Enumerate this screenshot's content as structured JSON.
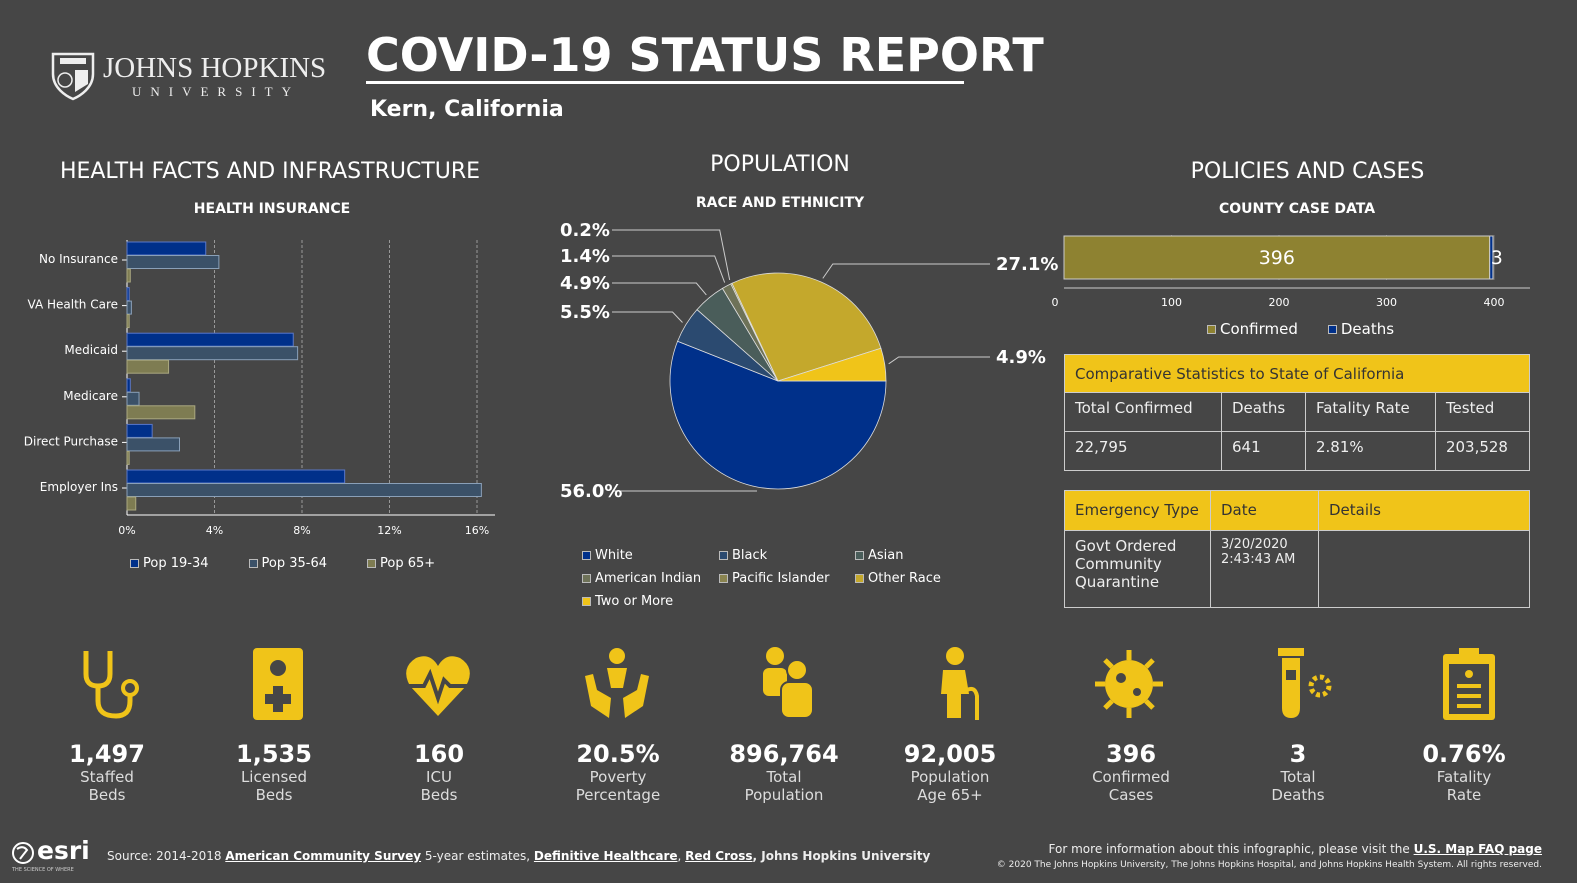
{
  "header": {
    "logo_name": "JOHNS HOPKINS",
    "logo_sub": "UNIVERSITY",
    "title": "COVID-19 STATUS REPORT",
    "location": "Kern,  California"
  },
  "sections": {
    "health": "HEALTH FACTS AND INFRASTRUCTURE",
    "population": "POPULATION",
    "policies": "POLICIES AND CASES"
  },
  "colors": {
    "accent": "#f0c419",
    "background": "#464646",
    "pop19": "#00308a",
    "pop35": "#3b5168",
    "pop65": "#7e7c52"
  },
  "chart_data": [
    {
      "type": "bar",
      "orientation": "horizontal",
      "title": "HEALTH INSURANCE",
      "categories": [
        "No Insurance",
        "VA Health Care",
        "Medicaid",
        "Medicare",
        "Direct Purchase",
        "Employer Ins"
      ],
      "series": [
        {
          "name": "Pop 19-34",
          "values": [
            3.6,
            0.1,
            7.6,
            0.15,
            1.15,
            9.95
          ]
        },
        {
          "name": "Pop 35-64",
          "values": [
            4.2,
            0.2,
            7.8,
            0.55,
            2.4,
            16.2
          ]
        },
        {
          "name": "Pop 65+",
          "values": [
            0.15,
            0.1,
            1.9,
            3.1,
            0.1,
            0.4
          ]
        }
      ],
      "xlim": [
        0,
        16
      ],
      "xticks": [
        "0%",
        "4%",
        "8%",
        "12%",
        "16%"
      ],
      "grid": true,
      "legend": "bottom"
    },
    {
      "type": "pie",
      "title": "RACE AND ETHNICITY",
      "categories": [
        "White",
        "Black",
        "Asian",
        "American Indian",
        "Pacific Islander",
        "Other Race",
        "Two or More"
      ],
      "values": [
        56.0,
        5.5,
        4.9,
        1.4,
        0.2,
        27.1,
        4.9
      ],
      "labels": [
        "56.0%",
        "5.5%",
        "4.9%",
        "1.4%",
        "0.2%",
        "27.1%",
        "4.9%"
      ],
      "colors": [
        "#00308a",
        "#2b4a70",
        "#4a5d5a",
        "#6e7258",
        "#8a8450",
        "#c4a82c",
        "#f0c419"
      ],
      "legend": "bottom"
    },
    {
      "type": "bar",
      "orientation": "horizontal",
      "stacked": true,
      "title": "COUNTY CASE DATA",
      "series": [
        {
          "name": "Confirmed",
          "values": [
            396
          ],
          "label": "396"
        },
        {
          "name": "Deaths",
          "values": [
            3
          ],
          "label": "3"
        }
      ],
      "xlim": [
        0,
        400
      ],
      "xticks": [
        "0",
        "100",
        "200",
        "300",
        "400"
      ],
      "colors": [
        "#8e8231",
        "#00308a"
      ],
      "legend": "bottom"
    }
  ],
  "comparative": {
    "title": "Comparative Statistics to State of California",
    "headers": [
      "Total Confirmed",
      "Deaths",
      "Fatality Rate",
      "Tested"
    ],
    "values": [
      "22,795",
      "641",
      "2.81%",
      "203,528"
    ]
  },
  "emergency": {
    "headers": [
      "Emergency Type",
      "Date",
      "Details"
    ],
    "rows": [
      [
        "Govt Ordered Community Quarantine",
        "3/20/2020 2:43:43 AM",
        ""
      ]
    ]
  },
  "stats": [
    {
      "icon": "stethoscope-icon",
      "value": "1,497",
      "l1": "Staffed",
      "l2": "Beds"
    },
    {
      "icon": "hospital-badge-icon",
      "value": "1,535",
      "l1": "Licensed",
      "l2": "Beds"
    },
    {
      "icon": "heartbeat-icon",
      "value": "160",
      "l1": "ICU",
      "l2": "Beds"
    },
    {
      "icon": "helping-hands-icon",
      "value": "20.5%",
      "l1": "Poverty",
      "l2": "Percentage"
    },
    {
      "icon": "people-icon",
      "value": "896,764",
      "l1": "Total",
      "l2": "Population"
    },
    {
      "icon": "elderly-icon",
      "value": "92,005",
      "l1": "Population",
      "l2": "Age 65+"
    },
    {
      "icon": "virus-icon",
      "value": "396",
      "l1": "Confirmed",
      "l2": "Cases"
    },
    {
      "icon": "test-tube-icon",
      "value": "3",
      "l1": "Total",
      "l2": "Deaths"
    },
    {
      "icon": "clipboard-icon",
      "value": "0.76%",
      "l1": "Fatality",
      "l2": "Rate"
    }
  ],
  "footer": {
    "esri": "esri",
    "esri_tag": "THE SCIENCE OF WHERE",
    "source_prefix": "Source: 2014-2018 ",
    "link1": "American Community Survey",
    "mid1": " 5-year estimates, ",
    "link2": "Definitive Healthcare",
    "mid2": ", ",
    "link3": "Red Cross",
    "mid3": ", Johns Hopkins University",
    "info_prefix": "For more information about this infographic, please visit the ",
    "info_link": "U.S. Map FAQ page",
    "copyright": "© 2020 The Johns Hopkins University, The Johns Hopkins Hospital, and Johns Hopkins Health System. All rights reserved."
  }
}
